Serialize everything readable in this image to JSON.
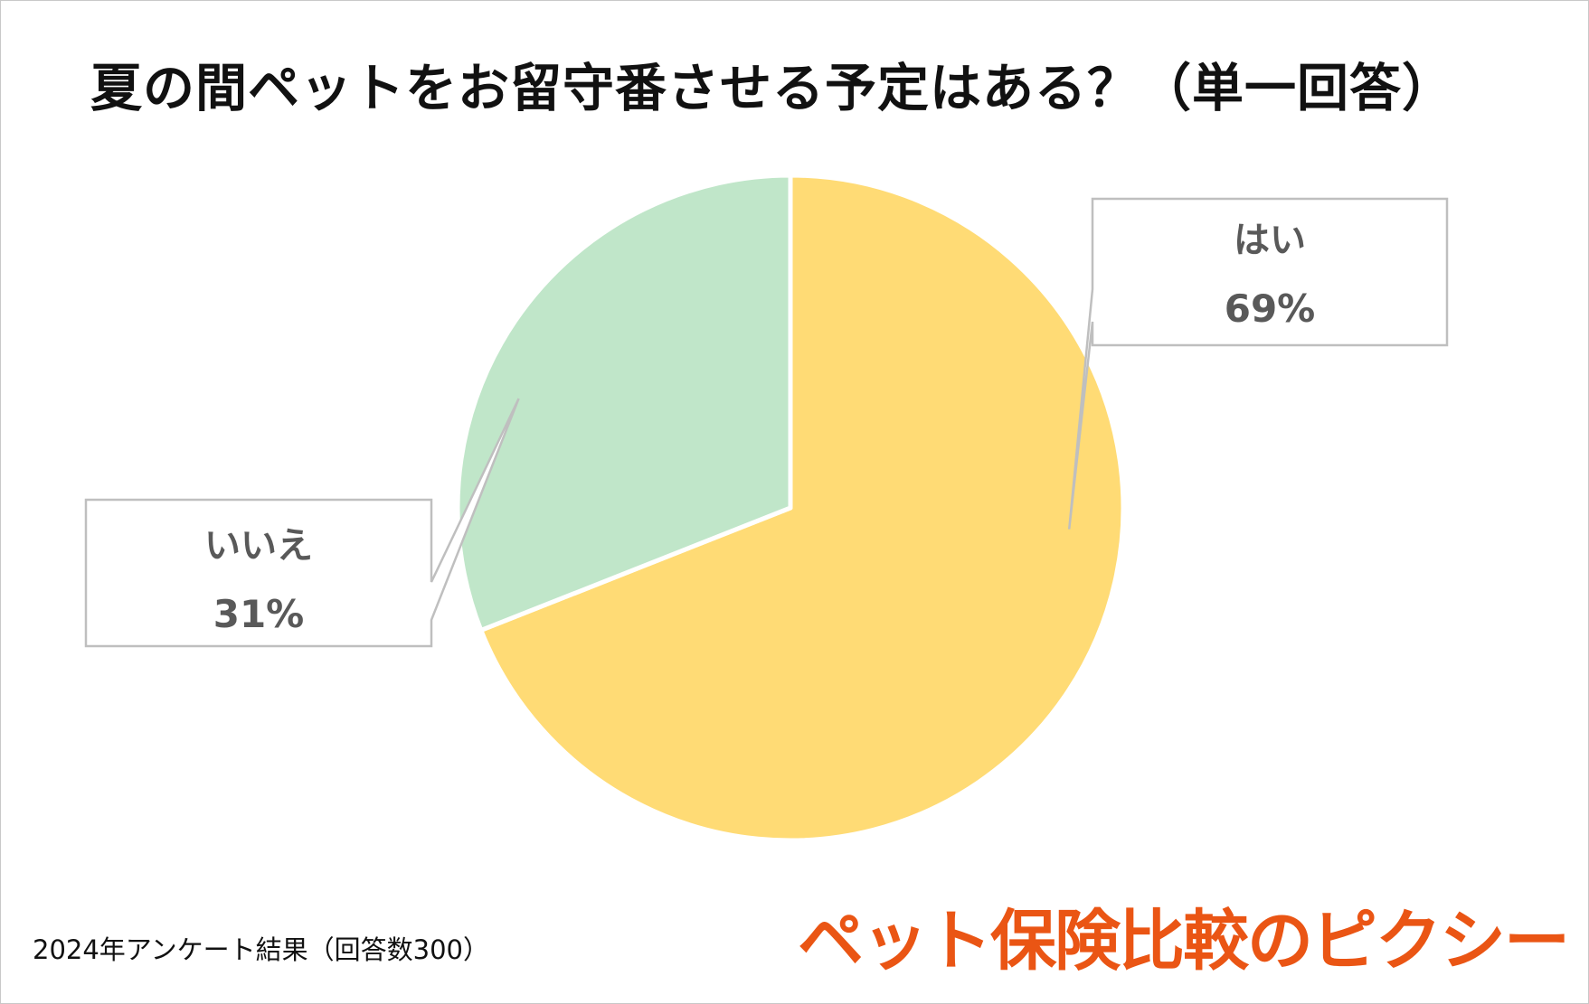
{
  "title": "夏の間ペットをお留守番させる予定はある？（単一回答）",
  "chart_data": {
    "type": "pie",
    "title": "夏の間ペットをお留守番させる予定はある？（単一回答）",
    "slices": [
      {
        "label": "はい",
        "value": 69,
        "value_label": "69%",
        "color": "#ffdb75"
      },
      {
        "label": "いいえ",
        "value": 31,
        "value_label": "31%",
        "color": "#c0e6c9"
      }
    ],
    "legend": "none",
    "data_labels": "callouts"
  },
  "footnote": "2024年アンケート結果（回答数300）",
  "logo_text": "ペット保険比較のピクシー",
  "colors": {
    "logo": "#ea5514",
    "label_text": "#595959",
    "callout_border": "#bfbfbf"
  }
}
